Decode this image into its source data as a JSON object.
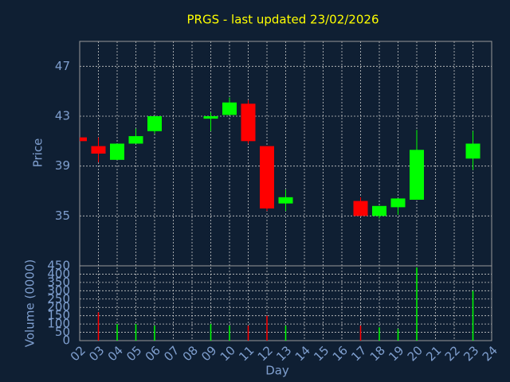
{
  "chart_data": {
    "type": "candlestick",
    "title": "PRGS - last updated 23/02/2026",
    "ylabel": "Price",
    "volume_label": "Volume (0000)",
    "xlabel": "Day",
    "categories": [
      "02",
      "03",
      "04",
      "05",
      "06",
      "07",
      "08",
      "09",
      "10",
      "11",
      "12",
      "13",
      "14",
      "15",
      "16",
      "17",
      "18",
      "19",
      "20",
      "21",
      "22",
      "23",
      "24"
    ],
    "x": [
      "02",
      "03",
      "04",
      "05",
      "06",
      "09",
      "10",
      "11",
      "12",
      "13",
      "17",
      "18",
      "19",
      "20",
      "23"
    ],
    "open": [
      41.3,
      40.6,
      39.5,
      40.8,
      41.8,
      42.8,
      43.1,
      44.0,
      40.6,
      36.0,
      36.2,
      35.0,
      35.7,
      36.3,
      39.6
    ],
    "high": [
      41.3,
      41.3,
      40.8,
      42.0,
      43.0,
      43.3,
      44.5,
      44.3,
      40.6,
      37.1,
      36.5,
      35.8,
      36.4,
      41.9,
      41.8
    ],
    "low": [
      41.0,
      39.3,
      39.5,
      40.8,
      41.6,
      41.8,
      43.1,
      40.8,
      35.4,
      35.4,
      35.0,
      34.8,
      35.1,
      36.3,
      38.7
    ],
    "close": [
      41.0,
      40.0,
      40.8,
      41.4,
      43.0,
      43.0,
      44.1,
      41.0,
      35.6,
      36.5,
      35.0,
      35.8,
      36.4,
      40.3,
      40.8
    ],
    "volume": [
      0,
      170,
      100,
      100,
      90,
      100,
      90,
      90,
      150,
      90,
      90,
      80,
      70,
      440,
      300
    ],
    "up_color": "#00ff00",
    "down_color": "#ff0000",
    "ylim": [
      31,
      49
    ],
    "yticks": [
      35,
      39,
      43,
      47
    ],
    "vlim": [
      0,
      450
    ],
    "vticks": [
      0,
      50,
      100,
      150,
      200,
      250,
      300,
      350,
      400,
      450
    ],
    "grid": true
  }
}
